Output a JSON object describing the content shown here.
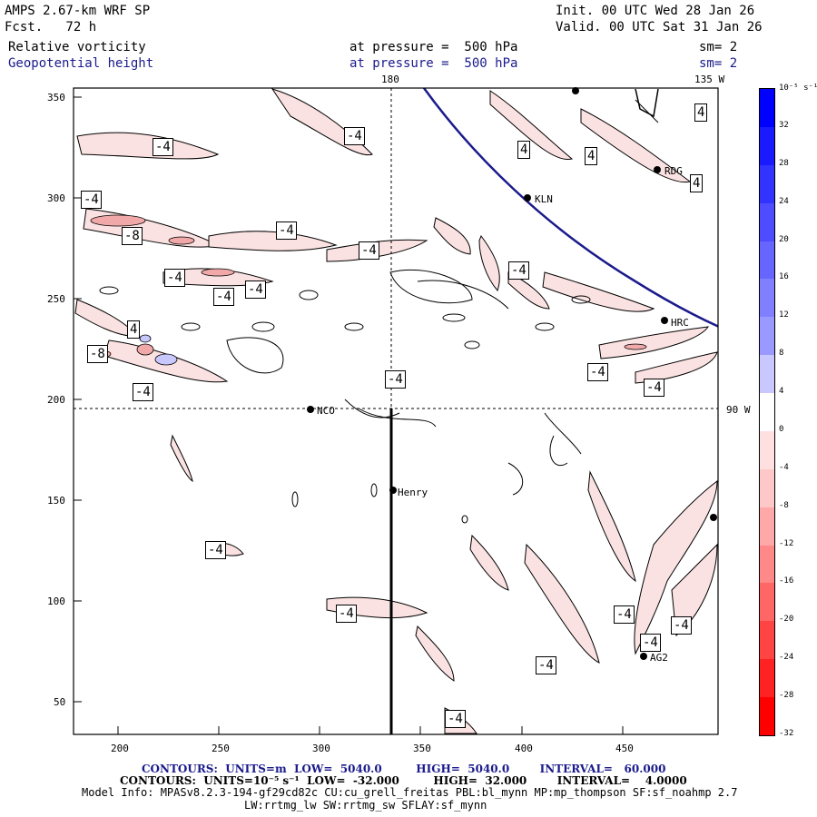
{
  "header": {
    "model": "AMPS 2.67-km WRF SP",
    "fcst": "Fcst.   72 h",
    "init": "Init. 00 UTC Wed 28 Jan 26",
    "valid": "Valid. 00 UTC Sat 31 Jan 26",
    "field1_name": "Relative vorticity",
    "field1_level": "at pressure =  500 hPa",
    "field1_sm": "sm= 2",
    "field2_name": "Geopotential height",
    "field2_level": "at pressure =  500 hPa",
    "field2_sm": "sm= 2"
  },
  "map": {
    "lon_top_label": "180",
    "lon_tr_label": "135 W",
    "lon_right_label": "90 W",
    "x_ticks": [
      "200",
      "250",
      "300",
      "350",
      "400",
      "450"
    ],
    "y_ticks": [
      "350",
      "300",
      "250",
      "200",
      "150",
      "100",
      "50"
    ],
    "stations": [
      "KLN",
      "RDG",
      "HRC",
      "NCO",
      "Henry",
      "AG2"
    ],
    "contour_labels": [
      "-4",
      "-4",
      "-4",
      "-4",
      "-8",
      "-4",
      "-4",
      "-4",
      "-4",
      "-4",
      "4",
      "-8",
      "-4",
      "4",
      "4",
      "4",
      "4",
      "-4",
      "-4",
      "-4",
      "-4",
      "-4",
      "-4",
      "-4",
      "-4",
      "-4",
      "-4",
      "4"
    ]
  },
  "colorbar": {
    "unit_label": "10⁻⁵ s⁻¹",
    "ticks": [
      "32",
      "28",
      "24",
      "20",
      "16",
      "12",
      "8",
      "4",
      "0",
      "-4",
      "-8",
      "-12",
      "-16",
      "-20",
      "-24",
      "-28",
      "-32"
    ],
    "colors": [
      "#0000ff",
      "#1a1aff",
      "#3333ff",
      "#4d4dff",
      "#6666ff",
      "#8080ff",
      "#9999ff",
      "#c8c8ff",
      "#ffffff",
      "#ffe0e0",
      "#ffc8c8",
      "#ffa8a8",
      "#ff8888",
      "#ff6666",
      "#ff4444",
      "#ff2222",
      "#ff0000"
    ]
  },
  "footer": {
    "line1": "CONTOURS:  UNITS=m  LOW=  5040.0         HIGH=  5040.0        INTERVAL=   60.000",
    "line2": "CONTOURS:  UNITS=10⁻⁵ s⁻¹  LOW=  -32.000         HIGH=  32.000        INTERVAL=    4.0000",
    "line3": "Model Info: MPASv8.2.3-194-gf29cd82c CU:cu_grell_freitas PBL:bl_mynn MP:mp_thompson SF:sf_noahmp 2.7",
    "line4": "LW:rrtmg_lw SW:rrtmg_sw SFLAY:sf_mynn"
  }
}
